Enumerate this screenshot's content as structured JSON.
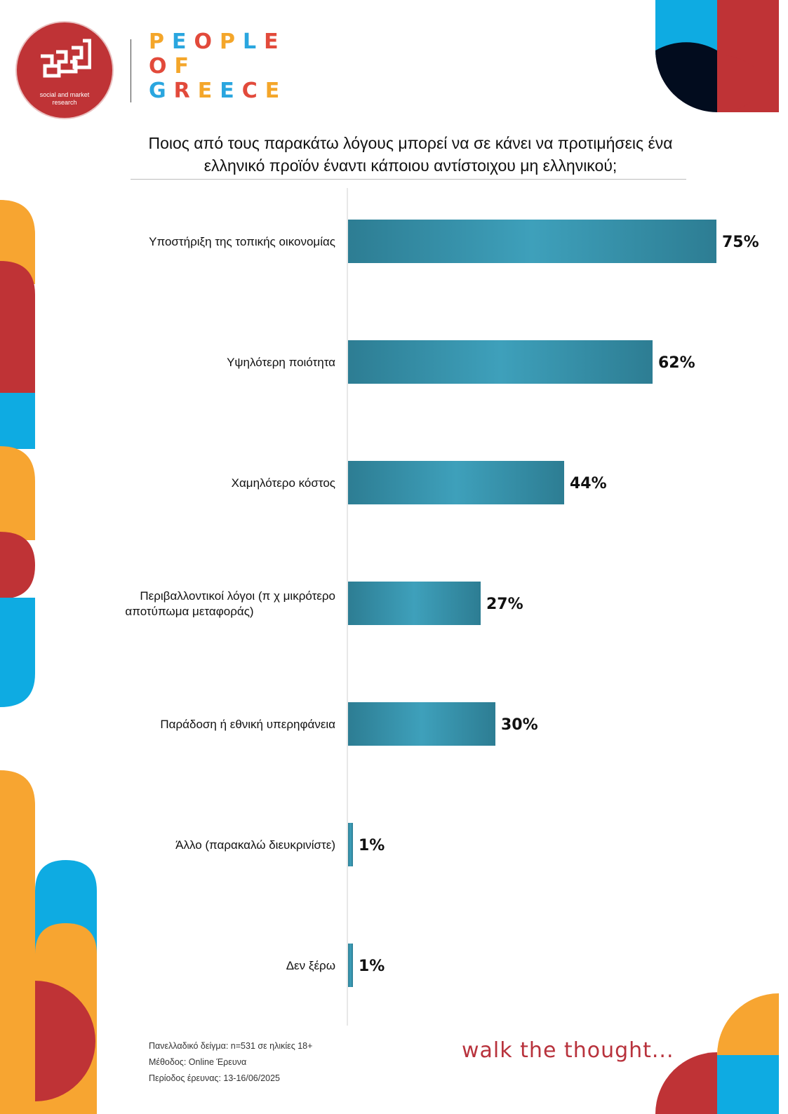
{
  "header": {
    "logo_caption_line1": "social and market",
    "logo_caption_line2": "research",
    "brand_line1": "PEOPLE",
    "brand_line2": "OF",
    "brand_line3": "GREECE",
    "brand_colors": [
      "#f4a62a",
      "#2aa6df",
      "#e24a3b",
      "#f4a62a",
      "#2aa6df",
      "#e24a3b"
    ]
  },
  "title_line1": "Ποιος από τους παρακάτω λόγους μπορεί να σε κάνει να προτιμήσεις ένα",
  "title_line2": "ελληνικό προϊόν έναντι κάποιου αντίστοιχου μη ελληνικού;",
  "chart_data": {
    "type": "bar",
    "orientation": "horizontal",
    "categories": [
      "Υποστήριξη της τοπικής οικονομίας",
      "Υψηλότερη ποιότητα",
      "Χαμηλότερο κόστος",
      "Περιβαλλοντικοί λόγοι (π χ  μικρότερο αποτύπωμα μεταφοράς)",
      "Παράδοση ή εθνική υπερηφάνεια",
      "Άλλο (παρακαλώ διευκρινίστε)",
      "Δεν ξέρω"
    ],
    "category_lines": [
      [
        "Υποστήριξη της τοπικής οικονομίας"
      ],
      [
        "Υψηλότερη ποιότητα"
      ],
      [
        "Χαμηλότερο κόστος"
      ],
      [
        "Περιβαλλοντικοί λόγοι (π χ  μικρότερο",
        "αποτύπωμα μεταφοράς)"
      ],
      [
        "Παράδοση ή εθνική υπερηφάνεια"
      ],
      [
        "Άλλο (παρακαλώ διευκρινίστε)"
      ],
      [
        "Δεν ξέρω"
      ]
    ],
    "values": [
      75,
      62,
      44,
      27,
      30,
      1,
      1
    ],
    "labels": [
      "75%",
      "62%",
      "44%",
      "27%",
      "30%",
      "1%",
      "1%"
    ],
    "xlim": [
      0,
      75
    ],
    "grid": false,
    "bar_color_dark": "#2d7d93",
    "bar_color_light": "#3ea0bb"
  },
  "footer": {
    "sample": "Πανελλαδικό δείγμα: n=531 σε ηλικίες 18+",
    "method": "Μέθοδος: Online Έρευνα",
    "period": "Περίοδος έρευνας:  13-16/06/2025",
    "tagline": "walk the thought..."
  },
  "decor_colors": {
    "orange": "#f7a531",
    "red": "#bf3336",
    "blue": "#0eabe2",
    "navy": "#020c1e"
  }
}
